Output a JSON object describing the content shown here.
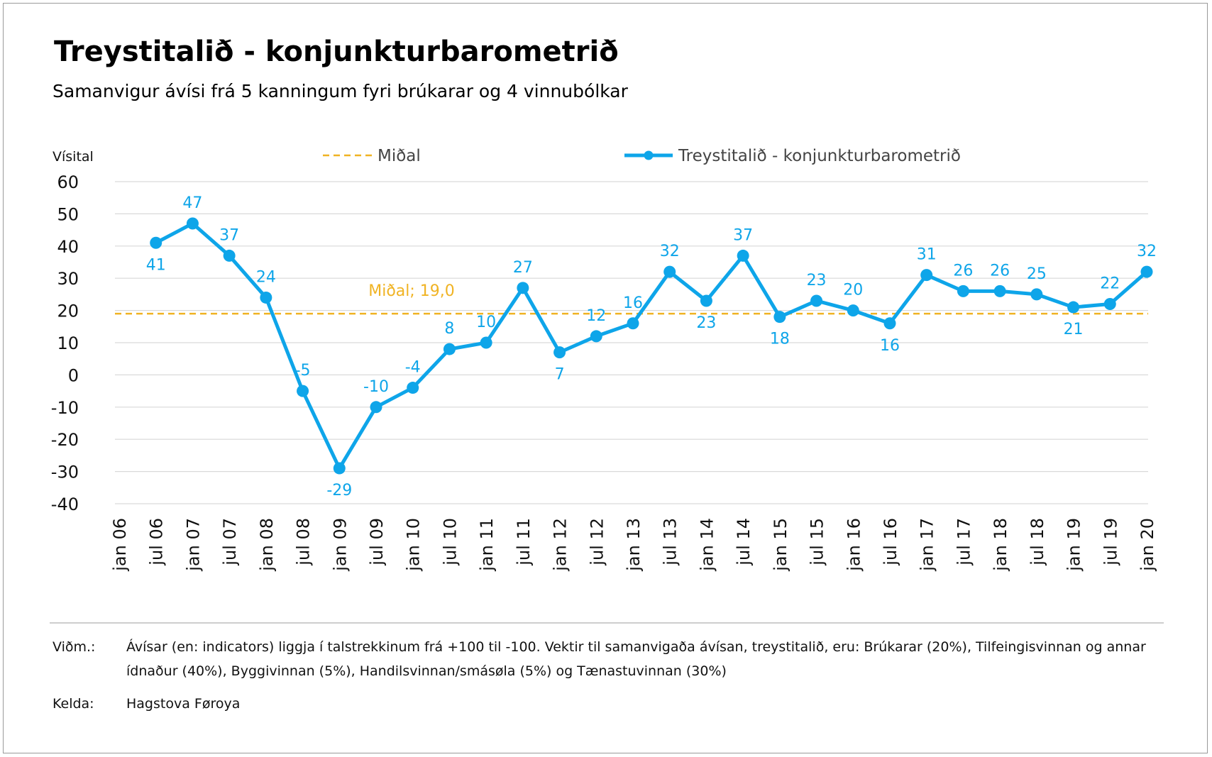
{
  "chart_data": {
    "type": "line",
    "title": "Treystitalið - konjunkturbarometrið",
    "subtitle": "Samanvigur ávísi frá 5 kanningum fyri brúkarar og 4 vinnubólkar",
    "ylabel": "Vísital",
    "ylim": [
      -40,
      60
    ],
    "yticks": [
      60,
      50,
      40,
      30,
      20,
      10,
      0,
      -10,
      -20,
      -30,
      -40
    ],
    "grid": "horizontal",
    "legend_position": "top",
    "categories": [
      "jan 06",
      "jul 06",
      "jan 07",
      "jul 07",
      "jan 08",
      "jul 08",
      "jan 09",
      "jul 09",
      "jan 10",
      "jul 10",
      "jan 11",
      "jul 11",
      "jan 12",
      "jul 12",
      "jan 13",
      "jul 13",
      "jan 14",
      "jul 14",
      "jan 15",
      "jul 15",
      "jan 16",
      "jul 16",
      "jan 17",
      "jul 17",
      "jan 18",
      "jul 18",
      "jan 19",
      "jul 19",
      "jan 20"
    ],
    "series": [
      {
        "name": "Treystitalið - konjunkturbarometrið",
        "color": "#0ea5e9",
        "points": [
          {
            "x": "jul 06",
            "y": 41,
            "label": "41"
          },
          {
            "x": "jan 07",
            "y": 47,
            "label": "47"
          },
          {
            "x": "jul 07",
            "y": 37,
            "label": "37"
          },
          {
            "x": "jan 08",
            "y": 24,
            "label": "24"
          },
          {
            "x": "jul 08",
            "y": -5,
            "label": "-5"
          },
          {
            "x": "jan 09",
            "y": -29,
            "label": "-29"
          },
          {
            "x": "jul 09",
            "y": -10,
            "label": "-10"
          },
          {
            "x": "jan 10",
            "y": -4,
            "label": "-4"
          },
          {
            "x": "jul 10",
            "y": 8,
            "label": "8"
          },
          {
            "x": "jan 11",
            "y": 10,
            "label": "10"
          },
          {
            "x": "jul 11",
            "y": 27,
            "label": "27"
          },
          {
            "x": "jan 12",
            "y": 7,
            "label": "7"
          },
          {
            "x": "jul 12",
            "y": 12,
            "label": "12"
          },
          {
            "x": "jan 13",
            "y": 16,
            "label": "16"
          },
          {
            "x": "jul 13",
            "y": 32,
            "label": "32"
          },
          {
            "x": "jan 14",
            "y": 23,
            "label": "23"
          },
          {
            "x": "jul 14",
            "y": 37,
            "label": "37"
          },
          {
            "x": "jan 15",
            "y": 18,
            "label": "18"
          },
          {
            "x": "jul 15",
            "y": 23,
            "label": "23"
          },
          {
            "x": "jan 16",
            "y": 20,
            "label": "20"
          },
          {
            "x": "jul 16",
            "y": 16,
            "label": "16"
          },
          {
            "x": "jan 17",
            "y": 31,
            "label": "31"
          },
          {
            "x": "jul 17",
            "y": 26,
            "label": "26"
          },
          {
            "x": "jan 18",
            "y": 26,
            "label": "26"
          },
          {
            "x": "jul 18",
            "y": 25,
            "label": "25"
          },
          {
            "x": "jan 19",
            "y": 21,
            "label": "21"
          },
          {
            "x": "jul 19",
            "y": 22,
            "label": "22"
          },
          {
            "x": "jan 20",
            "y": 32,
            "label": "32"
          }
        ]
      },
      {
        "name": "Miðal",
        "color": "#f0b323",
        "style": "dashed",
        "value": 19.0,
        "label": "Miðal; 19,0"
      }
    ]
  },
  "notes": {
    "note_label": "Viðm.:",
    "note_text": "Ávísar (en: indicators) liggja í talstrekkinum frá +100 til -100. Vektir til samanvigaða ávísan, treystitalið, eru: Brúkarar (20%), Tilfeingisvinnan og annar ídnaður (40%), Byggivinnan (5%), Handilsvinnan/smásøla (5%) og Tænastuvinnan (30%)",
    "source_label": "Kelda:",
    "source_text": "Hagstova Føroya"
  }
}
